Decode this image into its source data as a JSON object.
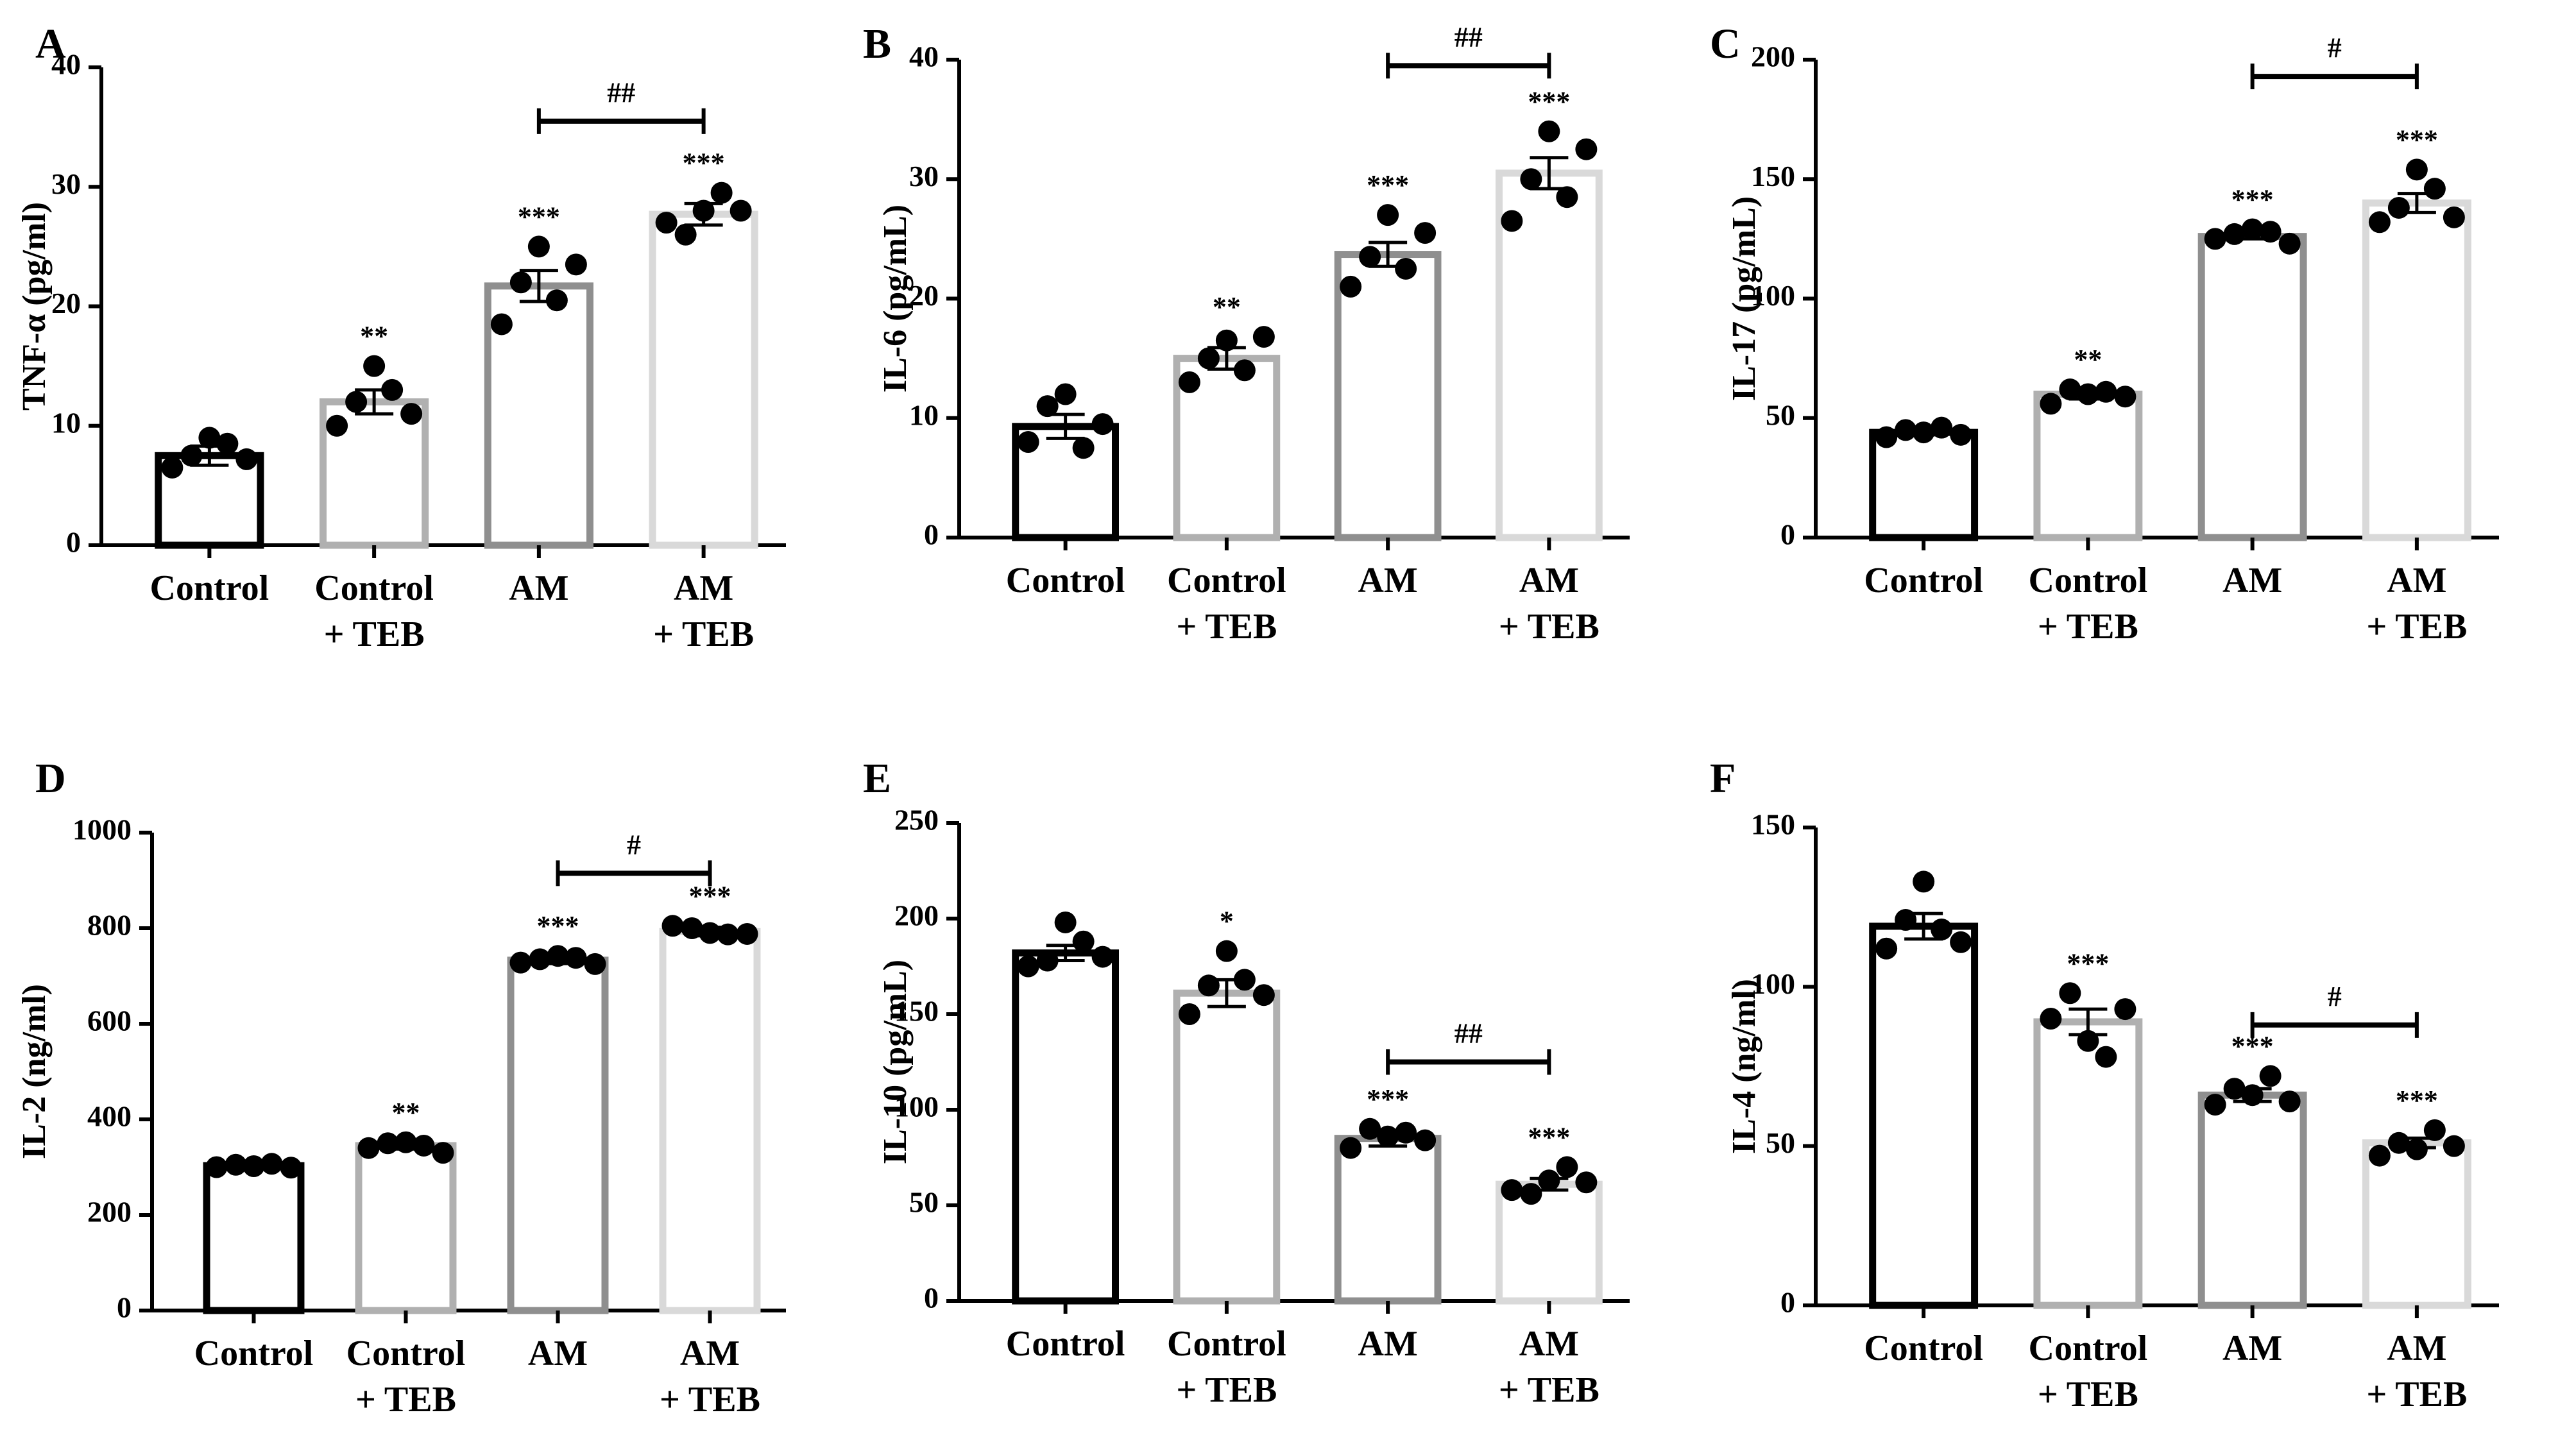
{
  "figure": {
    "category_colors": [
      "#000000",
      "#b0b0b0",
      "#8f8f8f",
      "#d9d9d9"
    ],
    "point_color": "#000000"
  },
  "chart_data": [
    {
      "panel": "A",
      "type": "bar",
      "title": "",
      "ylabel": "TNF-α (pg/ml)",
      "xlabel": "",
      "ylim": [
        0,
        40
      ],
      "yticks": [
        0,
        10,
        20,
        30,
        40
      ],
      "categories": [
        {
          "line1": "Control",
          "line2": ""
        },
        {
          "line1": "Control",
          "line2": "+ TEB"
        },
        {
          "line1": "AM",
          "line2": ""
        },
        {
          "line1": "AM",
          "line2": "+ TEB"
        }
      ],
      "values": [
        7.5,
        12,
        21.7,
        27.7
      ],
      "sem": [
        0.8,
        1.0,
        1.3,
        0.9
      ],
      "points": [
        [
          6.5,
          7.5,
          9,
          8.5,
          7.2
        ],
        [
          10,
          12,
          15,
          13,
          11
        ],
        [
          18.5,
          22,
          25,
          20.5,
          23.5
        ],
        [
          27,
          26,
          28,
          29.5,
          28
        ]
      ],
      "significance": [
        "",
        "**",
        "***",
        "***"
      ],
      "bracket": {
        "from": 2,
        "to": 3,
        "label": "##",
        "y": 35.5
      }
    },
    {
      "panel": "B",
      "type": "bar",
      "title": "",
      "ylabel": "IL-6 (pg/mL)",
      "xlabel": "",
      "ylim": [
        0,
        40
      ],
      "yticks": [
        0,
        10,
        20,
        30,
        40
      ],
      "categories": [
        {
          "line1": "Control",
          "line2": ""
        },
        {
          "line1": "Control",
          "line2": "+ TEB"
        },
        {
          "line1": "AM",
          "line2": ""
        },
        {
          "line1": "AM",
          "line2": "+ TEB"
        }
      ],
      "values": [
        9.3,
        15,
        23.7,
        30.5
      ],
      "sem": [
        1.0,
        0.9,
        1.0,
        1.3
      ],
      "points": [
        [
          8,
          11,
          12,
          7.5,
          9.5
        ],
        [
          13,
          15,
          16.5,
          14,
          16.8
        ],
        [
          21,
          23.5,
          27,
          22.5,
          25.5
        ],
        [
          26.5,
          30,
          34,
          28.5,
          32.5
        ]
      ],
      "significance": [
        "",
        "**",
        "***",
        "***"
      ],
      "bracket": {
        "from": 2,
        "to": 3,
        "label": "##",
        "y": 39.5
      }
    },
    {
      "panel": "C",
      "type": "bar",
      "title": "",
      "ylabel": "IL-17 (pg/mL)",
      "xlabel": "",
      "ylim": [
        0,
        200
      ],
      "yticks": [
        0,
        50,
        100,
        150,
        200
      ],
      "categories": [
        {
          "line1": "Control",
          "line2": ""
        },
        {
          "line1": "Control",
          "line2": "+ TEB"
        },
        {
          "line1": "AM",
          "line2": ""
        },
        {
          "line1": "AM",
          "line2": "+ TEB"
        }
      ],
      "values": [
        44,
        60,
        126,
        140
      ],
      "sem": [
        1.0,
        2.0,
        1.0,
        4.0
      ],
      "points": [
        [
          42,
          45,
          44,
          46,
          43
        ],
        [
          56,
          62,
          60,
          61,
          59
        ],
        [
          125,
          127,
          129,
          128,
          123
        ],
        [
          132,
          138,
          154,
          146,
          134
        ]
      ],
      "significance": [
        "",
        "**",
        "***",
        "***"
      ],
      "bracket": {
        "from": 2,
        "to": 3,
        "label": "#",
        "y": 193
      }
    },
    {
      "panel": "D",
      "type": "bar",
      "title": "",
      "ylabel": "IL-2 (ng/ml)",
      "xlabel": "",
      "ylim": [
        0,
        1000
      ],
      "yticks": [
        0,
        200,
        400,
        600,
        800,
        1000
      ],
      "categories": [
        {
          "line1": "Control",
          "line2": ""
        },
        {
          "line1": "Control",
          "line2": "+ TEB"
        },
        {
          "line1": "AM",
          "line2": ""
        },
        {
          "line1": "AM",
          "line2": "+ TEB"
        }
      ],
      "values": [
        303,
        345,
        733,
        793
      ],
      "sem": [
        4,
        7,
        7,
        9
      ],
      "points": [
        [
          300,
          305,
          302,
          307,
          299
        ],
        [
          340,
          350,
          352,
          345,
          330
        ],
        [
          728,
          735,
          742,
          738,
          725
        ],
        [
          805,
          800,
          790,
          787,
          788
        ]
      ],
      "significance": [
        "",
        "**",
        "***",
        "***"
      ],
      "bracket": {
        "from": 2,
        "to": 3,
        "label": "#",
        "y": 915
      }
    },
    {
      "panel": "E",
      "type": "bar",
      "title": "",
      "ylabel": "IL-10 (pg/mL)",
      "xlabel": "",
      "ylim": [
        0,
        250
      ],
      "yticks": [
        0,
        50,
        100,
        150,
        200,
        250
      ],
      "categories": [
        {
          "line1": "Control",
          "line2": ""
        },
        {
          "line1": "Control",
          "line2": "+ TEB"
        },
        {
          "line1": "AM",
          "line2": ""
        },
        {
          "line1": "AM",
          "line2": "+ TEB"
        }
      ],
      "values": [
        182,
        161,
        85,
        61
      ],
      "sem": [
        4,
        7,
        4,
        3
      ],
      "points": [
        [
          175,
          178,
          198,
          188,
          180
        ],
        [
          150,
          165,
          183,
          168,
          160
        ],
        [
          80,
          90,
          86,
          88,
          84
        ],
        [
          58,
          56,
          63,
          70,
          62
        ]
      ],
      "significance": [
        "",
        "*",
        "***",
        "***"
      ],
      "bracket": {
        "from": 2,
        "to": 3,
        "label": "##",
        "y": 125
      }
    },
    {
      "panel": "F",
      "type": "bar",
      "title": "",
      "ylabel": "IL-4 (ng/ml)",
      "xlabel": "",
      "ylim": [
        0,
        150
      ],
      "yticks": [
        0,
        50,
        100,
        150
      ],
      "categories": [
        {
          "line1": "Control",
          "line2": ""
        },
        {
          "line1": "Control",
          "line2": "+ TEB"
        },
        {
          "line1": "AM",
          "line2": ""
        },
        {
          "line1": "AM",
          "line2": "+ TEB"
        }
      ],
      "values": [
        119,
        89,
        66,
        51
      ],
      "sem": [
        4,
        4,
        2,
        1.5
      ],
      "points": [
        [
          112,
          121,
          133,
          118,
          114
        ],
        [
          90,
          98,
          83,
          78,
          93
        ],
        [
          63,
          68,
          66,
          72,
          64
        ],
        [
          47,
          51,
          49,
          55,
          50
        ]
      ],
      "significance": [
        "",
        "***",
        "***",
        "***"
      ],
      "bracket": {
        "from": 2,
        "to": 3,
        "label": "#",
        "y": 88
      }
    }
  ]
}
